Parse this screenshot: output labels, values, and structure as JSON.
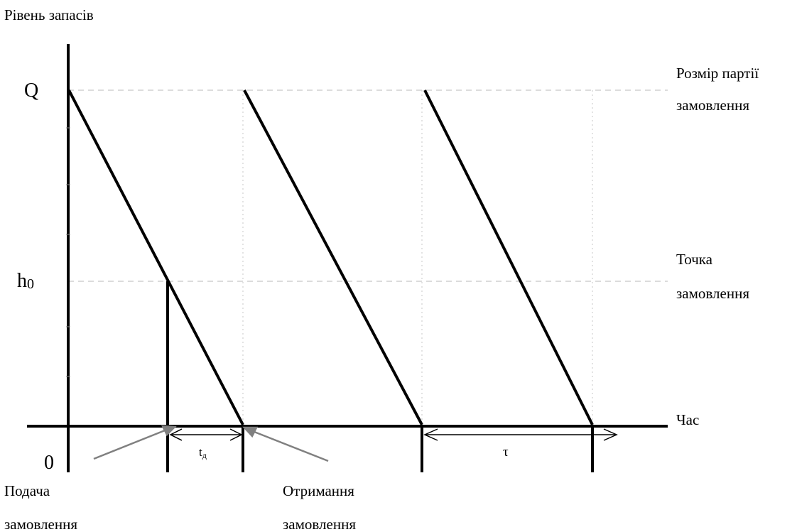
{
  "axes": {
    "y_label": "Рівень запасів",
    "x_label": "Час",
    "origin": "0",
    "q_label": "Q",
    "h_label": "h",
    "h_sub": "0"
  },
  "right_labels": {
    "batch_line1": "Розмір партії",
    "batch_line2": "замовлення",
    "reorder_line1": "Точка",
    "reorder_line2": "замовлення"
  },
  "bottom_labels": {
    "place_line1": "Подача",
    "place_line2": "замовлення",
    "receive_line1": "Отримання",
    "receive_line2": "замовлення"
  },
  "intervals": {
    "lead_time": "t",
    "lead_time_sub": "д",
    "cycle": "τ"
  }
}
